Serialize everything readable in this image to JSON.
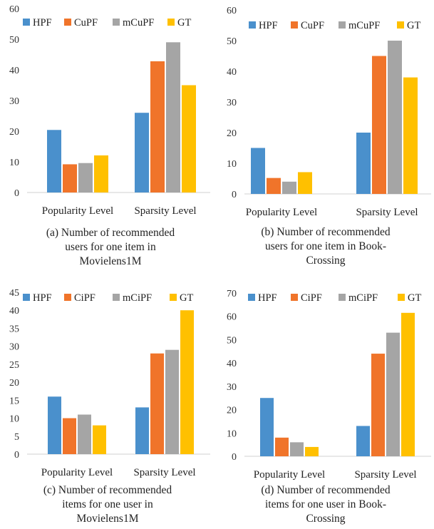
{
  "colors": {
    "HPF": "#4A90CC",
    "CuPF": "#F0742A",
    "mCuPF": "#A5A5A5",
    "GT": "#FFC000"
  },
  "chart_data": [
    {
      "id": "a",
      "type": "bar",
      "categories": [
        "Popularity Level",
        "Sparsity Level"
      ],
      "series": [
        {
          "name": "HPF",
          "color": "#4A90CC",
          "values": [
            20.4,
            26
          ]
        },
        {
          "name": "CuPF",
          "color": "#F0742A",
          "values": [
            9.2,
            42.8
          ]
        },
        {
          "name": "mCuPF",
          "color": "#A5A5A5",
          "values": [
            9.6,
            49
          ]
        },
        {
          "name": "GT",
          "color": "#FFC000",
          "values": [
            12.1,
            35
          ]
        }
      ],
      "yticks": [
        "0",
        "10",
        "20",
        "30",
        "40",
        "50",
        "60"
      ],
      "ylim": [
        0,
        60
      ],
      "grid": false,
      "legend": "top",
      "caption": [
        "(a) Number of recommended",
        "users for one item in",
        "Movielens1M"
      ]
    },
    {
      "id": "b",
      "type": "bar",
      "categories": [
        "Popularity Level",
        "Sparsity Level"
      ],
      "series": [
        {
          "name": "HPF",
          "color": "#4A90CC",
          "values": [
            15,
            20
          ]
        },
        {
          "name": "CuPF",
          "color": "#F0742A",
          "values": [
            5.2,
            45
          ]
        },
        {
          "name": "mCuPF",
          "color": "#A5A5A5",
          "values": [
            4,
            50
          ]
        },
        {
          "name": "GT",
          "color": "#FFC000",
          "values": [
            7.1,
            38
          ]
        }
      ],
      "yticks": [
        "0",
        "10",
        "20",
        "30",
        "40",
        "50",
        "60"
      ],
      "ylim": [
        0,
        60
      ],
      "grid": false,
      "legend": "top",
      "caption": [
        "(b) Number of recommended",
        "users for one  item in Book-",
        "Crossing"
      ]
    },
    {
      "id": "c",
      "type": "bar",
      "categories": [
        "Popularity Level",
        "Sparsity Level"
      ],
      "series": [
        {
          "name": "HPF",
          "color": "#4A90CC",
          "values": [
            16,
            13
          ]
        },
        {
          "name": "CiPF",
          "color": "#F0742A",
          "values": [
            10,
            28
          ]
        },
        {
          "name": "mCiPF",
          "color": "#A5A5A5",
          "values": [
            11,
            29
          ]
        },
        {
          "name": "GT",
          "color": "#FFC000",
          "values": [
            8,
            40
          ]
        }
      ],
      "yticks": [
        "0",
        "5",
        "10",
        "15",
        "20",
        "25",
        "30",
        "35",
        "40",
        "45"
      ],
      "ylim": [
        0,
        45
      ],
      "grid": false,
      "legend": "top",
      "caption": [
        "(c) Number of recommended",
        "items for one user in",
        "Movielens1M"
      ]
    },
    {
      "id": "d",
      "type": "bar",
      "categories": [
        "Popularity Level",
        "Sparsity Level"
      ],
      "series": [
        {
          "name": "HPF",
          "color": "#4A90CC",
          "values": [
            25,
            13
          ]
        },
        {
          "name": "CiPF",
          "color": "#F0742A",
          "values": [
            8,
            44
          ]
        },
        {
          "name": "mCiPF",
          "color": "#A5A5A5",
          "values": [
            6,
            53
          ]
        },
        {
          "name": "GT",
          "color": "#FFC000",
          "values": [
            4,
            61.5
          ]
        }
      ],
      "yticks": [
        "0",
        "10",
        "20",
        "30",
        "40",
        "50",
        "60",
        "70"
      ],
      "ylim": [
        0,
        70
      ],
      "grid": false,
      "legend": "top",
      "caption": [
        "(d) Number of recommended",
        "items for one  user in Book-",
        "Crossing"
      ]
    }
  ]
}
